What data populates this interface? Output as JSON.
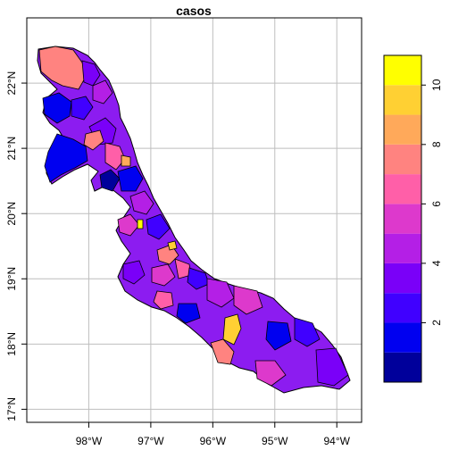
{
  "title": "casos",
  "map": {
    "lon_ticks": [
      {
        "value": -98,
        "label": "98°W"
      },
      {
        "value": -97,
        "label": "97°W"
      },
      {
        "value": -96,
        "label": "96°W"
      },
      {
        "value": -95,
        "label": "95°W"
      },
      {
        "value": -94,
        "label": "94°W"
      }
    ],
    "lat_ticks": [
      {
        "value": 17,
        "label": "17°N"
      },
      {
        "value": 18,
        "label": "18°N"
      },
      {
        "value": 19,
        "label": "19°N"
      },
      {
        "value": 20,
        "label": "20°N"
      },
      {
        "value": 21,
        "label": "21°N"
      },
      {
        "value": 22,
        "label": "22°N"
      }
    ],
    "lon_range": [
      -99.0,
      -93.6
    ],
    "lat_range": [
      16.8,
      23.0
    ],
    "grid": true,
    "fill_color": "#8c1cf0",
    "outline_color": "#000000"
  },
  "legend": {
    "placement": "right",
    "range": [
      0,
      11
    ],
    "colors": [
      "#00009b",
      "#0000f0",
      "#4000ff",
      "#7a00f8",
      "#b41fe6",
      "#dd39cc",
      "#ff5fa8",
      "#ff8380",
      "#ffa95a",
      "#ffd033",
      "#ffff00"
    ],
    "ticks": [
      {
        "value": 2,
        "label": "2"
      },
      {
        "value": 4,
        "label": "4"
      },
      {
        "value": 6,
        "label": "6"
      },
      {
        "value": 8,
        "label": "8"
      },
      {
        "value": 10,
        "label": "10"
      }
    ]
  }
}
